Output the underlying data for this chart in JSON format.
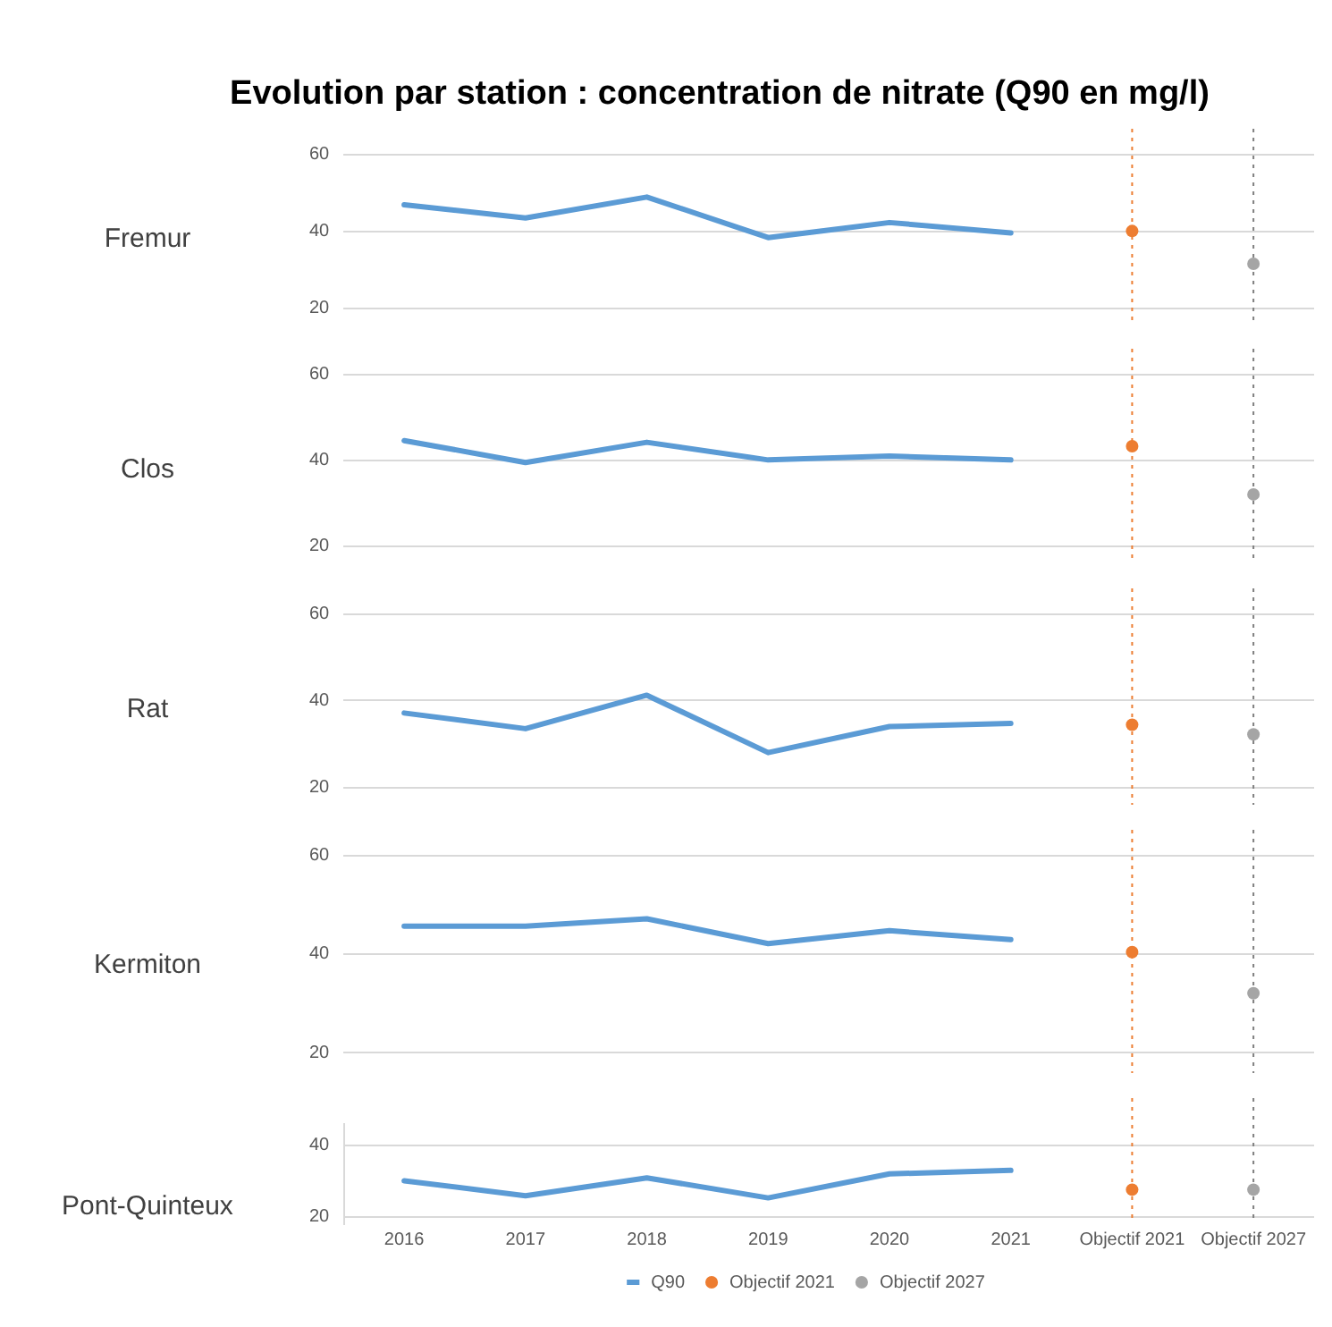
{
  "chart_data": [
    {
      "type": "line",
      "title": "Evolution par station :  concentration de nitrate (Q90 en mg/l)",
      "ylabel": "Fremur",
      "categories": [
        "2016",
        "2017",
        "2018",
        "2019",
        "2020",
        "2021",
        "Objectif 2021",
        "Objectif 2027"
      ],
      "ylim": [
        16,
        60
      ],
      "yticks": [
        20,
        40,
        60
      ],
      "grid": "y",
      "legend": false,
      "tick_labels": "y",
      "series": [
        {
          "type": "line",
          "marker": "none",
          "color": "#5b9bd5",
          "values": [
            46.8,
            43.4,
            48.8,
            38.3,
            42.2,
            39.5,
            null,
            null
          ]
        },
        {
          "type": "scatter",
          "marker": "circle",
          "color": "#ed7d31",
          "values": [
            null,
            null,
            null,
            null,
            null,
            null,
            40,
            null
          ]
        },
        {
          "type": "scatter",
          "marker": "circle",
          "color": "#a5a5a5",
          "values": [
            null,
            null,
            null,
            null,
            null,
            null,
            null,
            31.5
          ]
        }
      ],
      "ref_lines": [
        {
          "axis": "x",
          "value": "Objectif 2021",
          "color": "#ed7d31",
          "line_style": "dotted"
        },
        {
          "axis": "x",
          "value": "Objectif 2027",
          "color": "#7f7f7f",
          "line_style": "dotted"
        }
      ]
    },
    {
      "type": "line",
      "ylabel": "Clos",
      "categories": [
        "2016",
        "2017",
        "2018",
        "2019",
        "2020",
        "2021",
        "Objectif 2021",
        "Objectif 2027"
      ],
      "ylim": [
        16,
        60
      ],
      "yticks": [
        20,
        40,
        60
      ],
      "grid": "y",
      "legend": false,
      "tick_labels": "y",
      "series": [
        {
          "type": "line",
          "marker": "none",
          "color": "#5b9bd5",
          "values": [
            44.5,
            39.4,
            44.1,
            40,
            40.9,
            40,
            null,
            null
          ]
        },
        {
          "type": "scatter",
          "marker": "circle",
          "color": "#ed7d31",
          "values": [
            null,
            null,
            null,
            null,
            null,
            null,
            43.2,
            null
          ]
        },
        {
          "type": "scatter",
          "marker": "circle",
          "color": "#a5a5a5",
          "values": [
            null,
            null,
            null,
            null,
            null,
            null,
            null,
            32
          ]
        }
      ],
      "ref_lines": [
        {
          "axis": "x",
          "value": "Objectif 2021",
          "color": "#ed7d31",
          "line_style": "dotted"
        },
        {
          "axis": "x",
          "value": "Objectif 2027",
          "color": "#7f7f7f",
          "line_style": "dotted"
        }
      ]
    },
    {
      "type": "line",
      "ylabel": "Rat",
      "categories": [
        "2016",
        "2017",
        "2018",
        "2019",
        "2020",
        "2021",
        "Objectif 2021",
        "Objectif 2027"
      ],
      "ylim": [
        16,
        60
      ],
      "yticks": [
        20,
        40,
        60
      ],
      "grid": "y",
      "legend": false,
      "tick_labels": "y",
      "series": [
        {
          "type": "line",
          "marker": "none",
          "color": "#5b9bd5",
          "values": [
            37.1,
            33.5,
            41.2,
            28,
            34,
            34.7,
            null,
            null
          ]
        },
        {
          "type": "scatter",
          "marker": "circle",
          "color": "#ed7d31",
          "values": [
            null,
            null,
            null,
            null,
            null,
            null,
            34.4,
            null
          ]
        },
        {
          "type": "scatter",
          "marker": "circle",
          "color": "#a5a5a5",
          "values": [
            null,
            null,
            null,
            null,
            null,
            null,
            null,
            32.2
          ]
        }
      ],
      "ref_lines": [
        {
          "axis": "x",
          "value": "Objectif 2021",
          "color": "#ed7d31",
          "line_style": "dotted"
        },
        {
          "axis": "x",
          "value": "Objectif 2027",
          "color": "#7f7f7f",
          "line_style": "dotted"
        }
      ]
    },
    {
      "type": "line",
      "ylabel": "Kermiton",
      "categories": [
        "2016",
        "2017",
        "2018",
        "2019",
        "2020",
        "2021",
        "Objectif 2021",
        "Objectif 2027"
      ],
      "ylim": [
        16,
        60
      ],
      "yticks": [
        20,
        40,
        60
      ],
      "grid": "y",
      "legend": false,
      "tick_labels": "y",
      "series": [
        {
          "type": "line",
          "marker": "none",
          "color": "#5b9bd5",
          "values": [
            45.6,
            45.6,
            47.1,
            42.1,
            44.7,
            42.9,
            null,
            null
          ]
        },
        {
          "type": "scatter",
          "marker": "circle",
          "color": "#ed7d31",
          "values": [
            null,
            null,
            null,
            null,
            null,
            null,
            40.4,
            null
          ]
        },
        {
          "type": "scatter",
          "marker": "circle",
          "color": "#a5a5a5",
          "values": [
            null,
            null,
            null,
            null,
            null,
            null,
            null,
            32.1
          ]
        }
      ],
      "ref_lines": [
        {
          "axis": "x",
          "value": "Objectif 2021",
          "color": "#ed7d31",
          "line_style": "dotted"
        },
        {
          "axis": "x",
          "value": "Objectif 2027",
          "color": "#7f7f7f",
          "line_style": "dotted"
        }
      ]
    },
    {
      "type": "line",
      "ylabel": "Pont-Quinteux",
      "categories": [
        "2016",
        "2017",
        "2018",
        "2019",
        "2020",
        "2021",
        "Objectif 2021",
        "Objectif 2027"
      ],
      "ylim": [
        18,
        46
      ],
      "yticks": [
        20,
        40
      ],
      "grid": "y",
      "legend": "bottom",
      "series": [
        {
          "name": "Q90",
          "type": "line",
          "marker": "none",
          "color": "#5b9bd5",
          "values": [
            29.9,
            25.7,
            30.7,
            25.1,
            31.8,
            32.8,
            null,
            null
          ]
        },
        {
          "name": "Objectif 2021",
          "type": "scatter",
          "marker": "circle",
          "color": "#ed7d31",
          "values": [
            null,
            null,
            null,
            null,
            null,
            null,
            27.4,
            null
          ]
        },
        {
          "name": "Objectif 2027",
          "type": "scatter",
          "marker": "circle",
          "color": "#a5a5a5",
          "values": [
            null,
            null,
            null,
            null,
            null,
            null,
            null,
            27.4
          ]
        }
      ],
      "ref_lines": [
        {
          "axis": "x",
          "value": "Objectif 2021",
          "color": "#ed7d31",
          "line_style": "dotted"
        },
        {
          "axis": "x",
          "value": "Objectif 2027",
          "color": "#7f7f7f",
          "line_style": "dotted"
        }
      ]
    }
  ]
}
